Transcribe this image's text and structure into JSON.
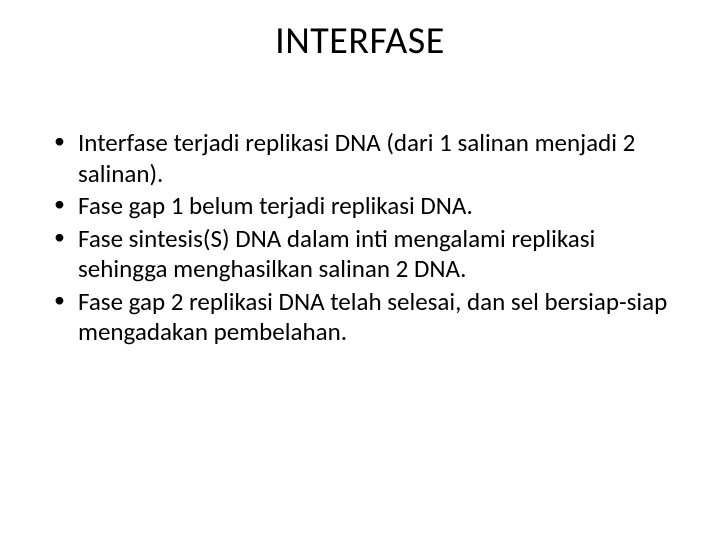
{
  "slide": {
    "title": "INTERFASE",
    "bullets": [
      "Interfase terjadi replikasi DNA (dari 1 salinan menjadi 2 salinan).",
      "Fase gap 1 belum terjadi replikasi DNA.",
      "Fase sintesis(S) DNA dalam inti mengalami replikasi sehingga menghasilkan salinan 2 DNA.",
      "Fase gap 2 replikasi DNA telah selesai, dan sel bersiap-siap mengadakan pembelahan."
    ],
    "background_color": "#ffffff",
    "text_color": "#000000",
    "title_fontsize": 38,
    "body_fontsize": 25,
    "font_family": "Calibri"
  }
}
